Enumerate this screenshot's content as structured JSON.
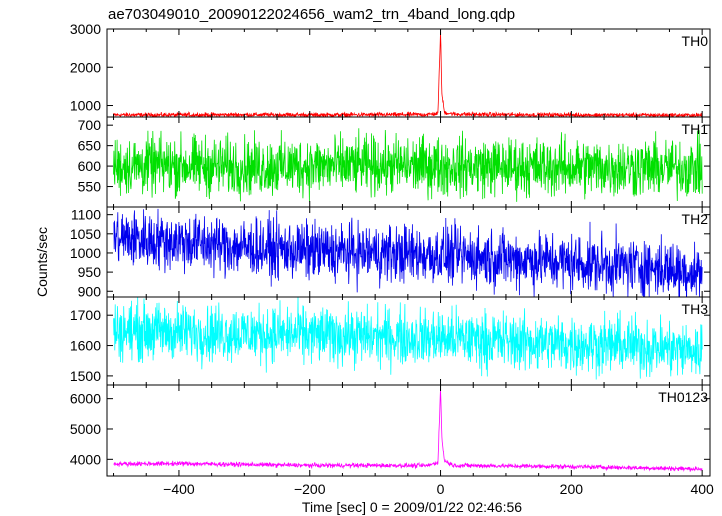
{
  "chart_data": {
    "type": "line",
    "title": "ae703049010_20090122024656_wam2_trn_4band_long.qdp",
    "xlabel": "Time [sec] 0 = 2009/01/22 02:46:56",
    "ylabel": "Counts/sec",
    "xlim": [
      -510,
      412
    ],
    "x_ticks": [
      -400,
      -200,
      0,
      200,
      400
    ],
    "grid": false,
    "legend": "none",
    "panels": [
      {
        "name": "TH0",
        "color": "#ff0000",
        "ylim": [
          700,
          3000
        ],
        "y_ticks": [
          1000,
          2000,
          3000
        ],
        "series": {
          "x": [
            -500,
            -400,
            -300,
            -200,
            -100,
            -20,
            -4,
            0,
            2,
            6,
            20,
            100,
            200,
            300,
            400
          ],
          "values": [
            755,
            755,
            760,
            755,
            760,
            765,
            790,
            2950,
            1300,
            820,
            775,
            760,
            755,
            750,
            745
          ]
        }
      },
      {
        "name": "TH1",
        "color": "#00e000",
        "ylim": [
          500,
          720
        ],
        "y_ticks": [
          550,
          600,
          650,
          700
        ],
        "series": {
          "x": [
            -500,
            -400,
            -300,
            -200,
            -100,
            0,
            100,
            200,
            300,
            400
          ],
          "values": [
            600,
            602,
            598,
            600,
            601,
            600,
            598,
            597,
            596,
            595
          ]
        }
      },
      {
        "name": "TH2",
        "color": "#0000ee",
        "ylim": [
          885,
          1120
        ],
        "y_ticks": [
          900,
          950,
          1000,
          1050,
          1100
        ],
        "series": {
          "x": [
            -500,
            -400,
            -300,
            -200,
            -100,
            0,
            100,
            200,
            300,
            400
          ],
          "values": [
            1040,
            1030,
            1015,
            1005,
            1000,
            995,
            985,
            975,
            965,
            950
          ]
        }
      },
      {
        "name": "TH3",
        "color": "#00ffff",
        "ylim": [
          1470,
          1760
        ],
        "y_ticks": [
          1500,
          1600,
          1700
        ],
        "series": {
          "x": [
            -500,
            -400,
            -300,
            -200,
            -100,
            0,
            100,
            200,
            300,
            400
          ],
          "values": [
            1650,
            1645,
            1640,
            1635,
            1630,
            1625,
            1615,
            1605,
            1600,
            1580
          ]
        }
      },
      {
        "name": "TH0123",
        "color": "#ff00ff",
        "ylim": [
          3450,
          6450
        ],
        "y_ticks": [
          4000,
          5000,
          6000
        ],
        "series": {
          "x": [
            -500,
            -400,
            -300,
            -200,
            -100,
            -20,
            -4,
            0,
            2,
            6,
            20,
            100,
            200,
            300,
            400
          ],
          "values": [
            3850,
            3860,
            3830,
            3800,
            3800,
            3790,
            3900,
            6350,
            4700,
            3950,
            3800,
            3780,
            3760,
            3720,
            3680
          ]
        }
      }
    ]
  }
}
